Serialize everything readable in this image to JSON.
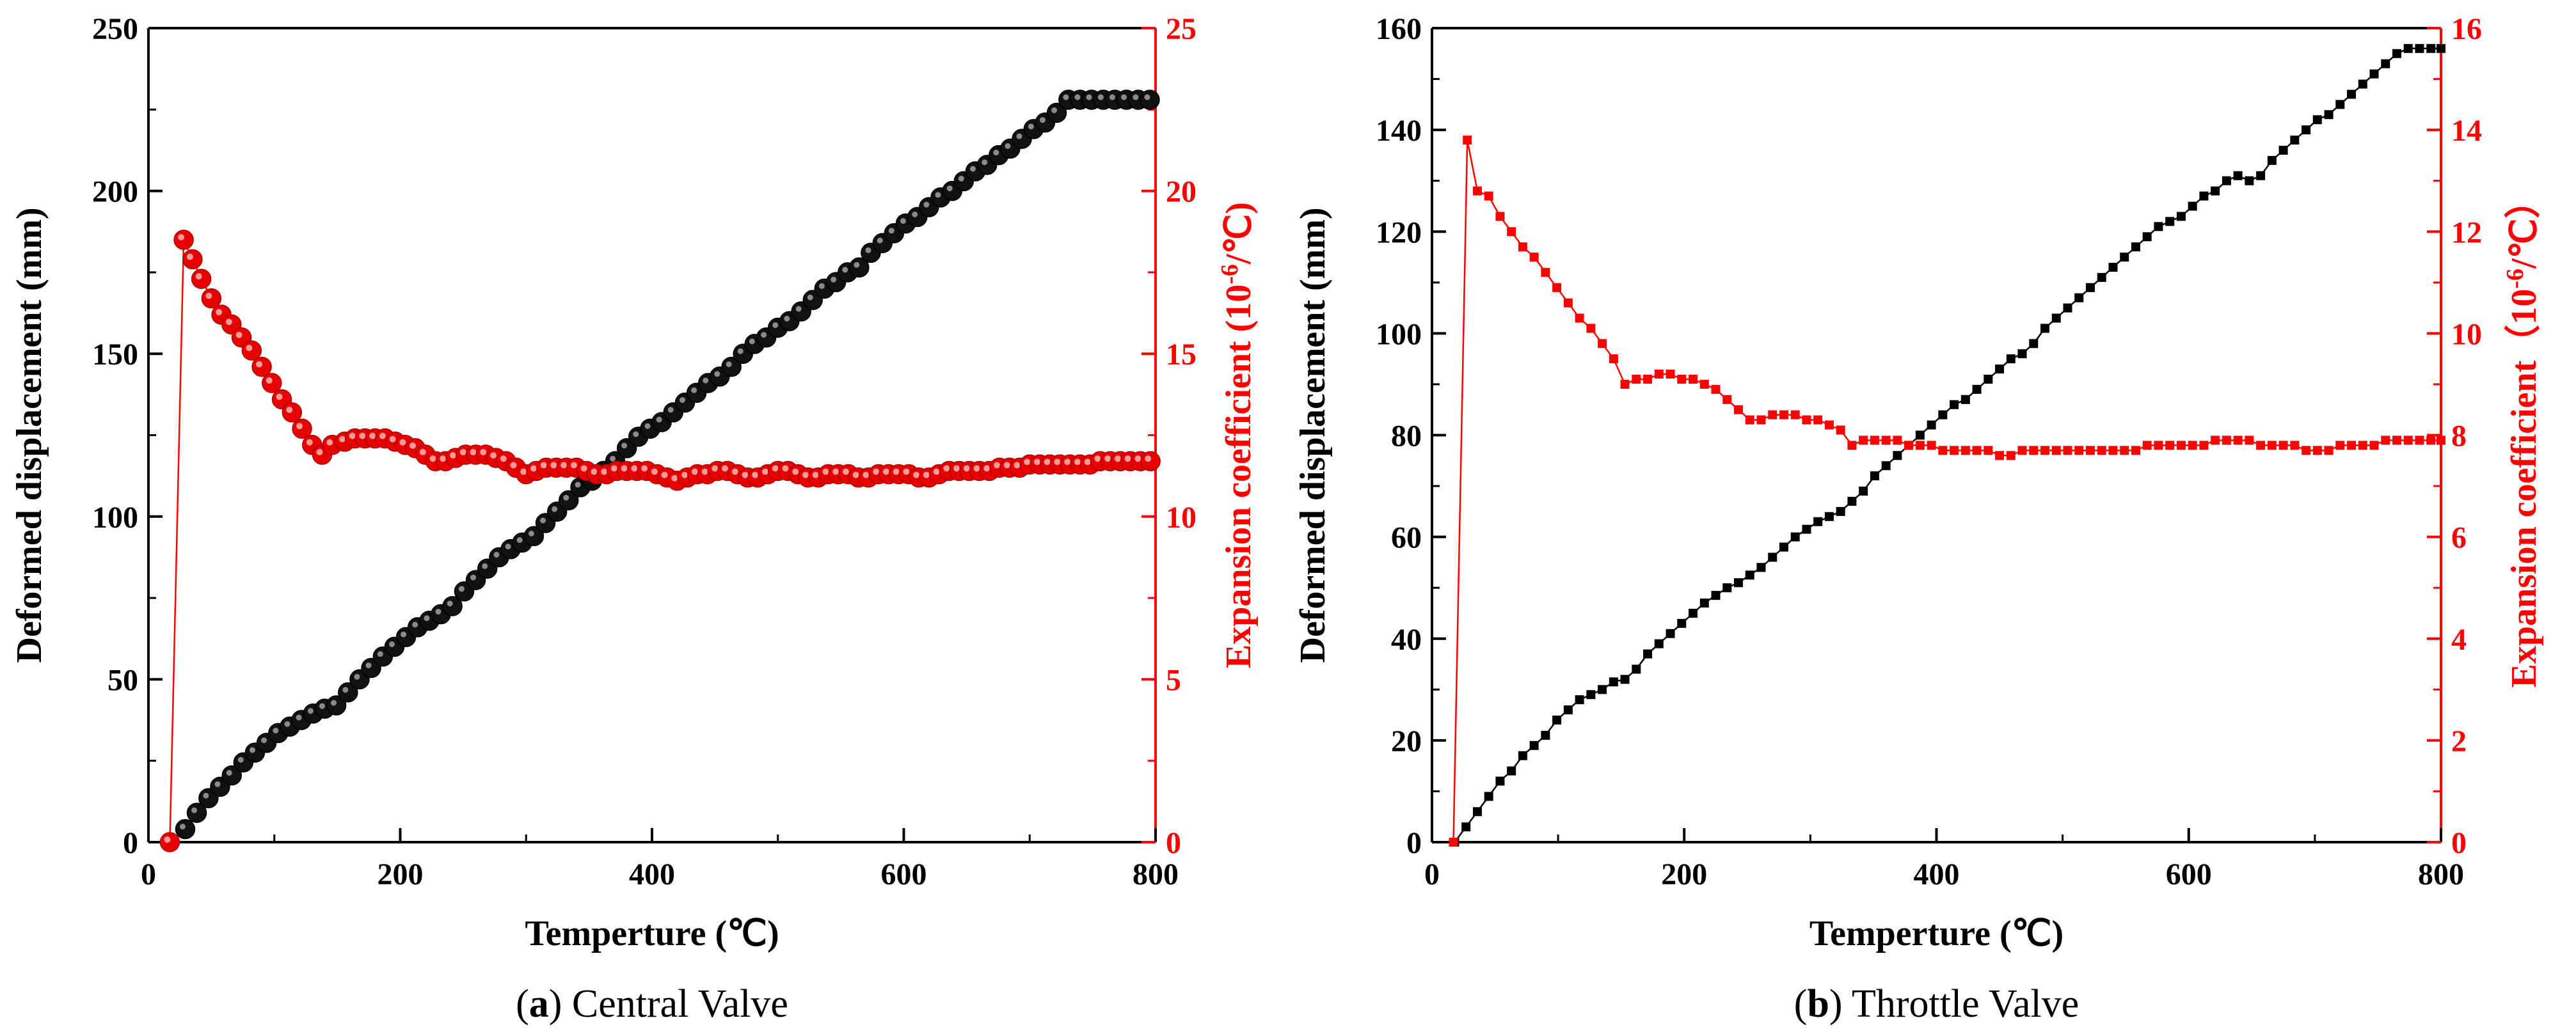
{
  "colors": {
    "primary_series": "#000000",
    "secondary_series": "#ff0000",
    "axis": "#000000"
  },
  "chart_data": [
    {
      "type": "scatter",
      "panel_label": "a",
      "caption": "Central Valve",
      "xlabel": "Temperture (℃)",
      "ylabel_left": "Deformed displacement (mm)",
      "ylabel_right_main": "Expansion coefficient (10",
      "ylabel_right_exp": "-6",
      "ylabel_right_unit": "/℃)",
      "xlim": [
        0,
        800
      ],
      "ylim_left": [
        0,
        250
      ],
      "ylim_right": [
        0,
        25
      ],
      "xticks": [
        "0",
        "200",
        "400",
        "600",
        "800"
      ],
      "yticks_left": [
        "0",
        "50",
        "100",
        "150",
        "200",
        "250"
      ],
      "yticks_right": [
        "0",
        "5",
        "10",
        "15",
        "20",
        "25"
      ],
      "marker": "circle",
      "series": [
        {
          "name": "Deformed displacement",
          "axis": "left",
          "color": "#000000",
          "x": [
            29.2,
            38.4,
            47.7,
            56.9,
            66.2,
            75.4,
            84.6,
            93.8,
            103.1,
            112.3,
            121.5,
            130.8,
            140,
            149.2,
            158.5,
            167.7,
            176.9,
            186.2,
            195.4,
            204.6,
            213.8,
            223.1,
            232.3,
            241.5,
            250.8,
            260,
            269.2,
            278.5,
            287.7,
            296.9,
            306.2,
            315.4,
            324.6,
            333.8,
            343.1,
            352.3,
            361.5,
            370.8,
            380,
            389.2,
            398.5,
            407.7,
            416.9,
            426.2,
            435.4,
            444.6,
            453.8,
            463.1,
            472.3,
            481.5,
            490.8,
            500,
            509.2,
            518.5,
            527.7,
            536.9,
            546.2,
            555.4,
            564.6,
            573.8,
            583.1,
            592.3,
            601.5,
            610.8,
            620,
            629.2,
            638.5,
            647.7,
            656.9,
            666.2,
            675.4,
            684.6,
            693.8,
            703.1,
            712.3,
            721.5,
            730.8,
            740,
            749.2,
            758.5,
            767.7,
            776.9,
            786.2,
            795.4
          ],
          "y": [
            4,
            9,
            13.5,
            17,
            20.5,
            24.5,
            27.5,
            30.5,
            33.5,
            35.5,
            37.5,
            39.5,
            41,
            42,
            46,
            50,
            53.5,
            57,
            60,
            63,
            66,
            68,
            70,
            72.5,
            77,
            80.5,
            84,
            87.5,
            90,
            92,
            94,
            98,
            101.5,
            105,
            109,
            111,
            114,
            117,
            121,
            124.5,
            127,
            129,
            132,
            135,
            138,
            141,
            143,
            146,
            150,
            153,
            155,
            158,
            160,
            163,
            166.5,
            170,
            172,
            175,
            176.5,
            181,
            184,
            187,
            190,
            192,
            195,
            198,
            200,
            203,
            206,
            208,
            211,
            213,
            216,
            219,
            221,
            224,
            228,
            228,
            228,
            228,
            228,
            228,
            228,
            228
          ],
          "y_note": "left axis, mm"
        },
        {
          "name": "Expansion coefficient",
          "axis": "right",
          "color": "#ff0000",
          "x": [
            17,
            28,
            35,
            42,
            50,
            58,
            66,
            74,
            82,
            90,
            98,
            106,
            114,
            122,
            130,
            138,
            146,
            156,
            164,
            172,
            180,
            188,
            196,
            204,
            212,
            220,
            228,
            236,
            244,
            252,
            260,
            268,
            276,
            284,
            292,
            300,
            308,
            316,
            324,
            332,
            340,
            348,
            356,
            364,
            372,
            380,
            388,
            396,
            404,
            412,
            420,
            428,
            436,
            444,
            452,
            460,
            468,
            476,
            484,
            492,
            500,
            508,
            516,
            524,
            532,
            540,
            548,
            556,
            564,
            572,
            580,
            588,
            596,
            604,
            612,
            620,
            628,
            636,
            644,
            652,
            660,
            668,
            676,
            684,
            692,
            700,
            708,
            716,
            724,
            732,
            740,
            748,
            756,
            764,
            772,
            780,
            788,
            796
          ],
          "y": [
            0,
            18.5,
            17.9,
            17.3,
            16.7,
            16.2,
            15.9,
            15.5,
            15.1,
            14.6,
            14.1,
            13.6,
            13.2,
            12.7,
            12.2,
            11.9,
            12.2,
            12.3,
            12.4,
            12.4,
            12.4,
            12.4,
            12.3,
            12.2,
            12.1,
            11.9,
            11.7,
            11.7,
            11.8,
            11.9,
            11.9,
            11.9,
            11.8,
            11.7,
            11.5,
            11.3,
            11.4,
            11.5,
            11.5,
            11.5,
            11.5,
            11.4,
            11.3,
            11.3,
            11.4,
            11.4,
            11.4,
            11.4,
            11.3,
            11.2,
            11.1,
            11.2,
            11.3,
            11.3,
            11.4,
            11.4,
            11.3,
            11.2,
            11.2,
            11.3,
            11.4,
            11.4,
            11.3,
            11.2,
            11.2,
            11.3,
            11.3,
            11.3,
            11.2,
            11.2,
            11.3,
            11.3,
            11.3,
            11.3,
            11.2,
            11.2,
            11.3,
            11.4,
            11.4,
            11.4,
            11.4,
            11.4,
            11.5,
            11.5,
            11.5,
            11.6,
            11.6,
            11.6,
            11.6,
            11.6,
            11.6,
            11.6,
            11.7,
            11.7,
            11.7,
            11.7,
            11.7,
            11.7
          ],
          "y_note": "right axis, 10^-6/℃"
        }
      ]
    },
    {
      "type": "scatter",
      "panel_label": "b",
      "caption": "Throttle Valve",
      "xlabel": "Temperture (℃)",
      "ylabel_left": "Deformed displacement (mm)",
      "ylabel_right_main": "Expansion coefficient（10",
      "ylabel_right_exp": "-6",
      "ylabel_right_unit": "/℃）",
      "xlim": [
        0,
        800
      ],
      "ylim_left": [
        0,
        160
      ],
      "ylim_right": [
        0,
        16
      ],
      "xticks": [
        "0",
        "200",
        "400",
        "600",
        "800"
      ],
      "yticks_left": [
        "0",
        "20",
        "40",
        "60",
        "80",
        "100",
        "120",
        "140",
        "160"
      ],
      "yticks_right": [
        "0",
        "2",
        "4",
        "6",
        "8",
        "10",
        "12",
        "14",
        "16"
      ],
      "marker": "square",
      "series": [
        {
          "name": "Deformed displacement",
          "axis": "left",
          "color": "#000000",
          "x": [
            18,
            27,
            36,
            45,
            54,
            63,
            72,
            81,
            90,
            99,
            108,
            117,
            126,
            135,
            144,
            153,
            162,
            171,
            180,
            189,
            198,
            207,
            216,
            225,
            234,
            243,
            252,
            261,
            270,
            279,
            288,
            297,
            306,
            315,
            324,
            333,
            342,
            351,
            360,
            369,
            378,
            387,
            396,
            405,
            414,
            423,
            432,
            441,
            450,
            459,
            468,
            477,
            486,
            495,
            504,
            513,
            522,
            531,
            540,
            549,
            558,
            567,
            576,
            585,
            594,
            603,
            612,
            621,
            630,
            639,
            648,
            657,
            666,
            675,
            684,
            693,
            702,
            711,
            720,
            729,
            738,
            747,
            756,
            765,
            774,
            783,
            792,
            800
          ],
          "y": [
            0,
            3,
            6,
            9,
            12,
            14,
            17,
            19,
            21,
            24,
            26,
            28,
            29,
            30,
            31.5,
            32,
            34,
            37,
            39,
            41,
            43,
            45,
            47,
            48.5,
            50,
            51,
            52.5,
            54,
            56,
            58,
            60,
            61.5,
            63,
            64,
            65,
            67,
            69,
            72,
            74,
            76,
            78,
            80,
            82,
            84,
            86,
            87,
            89,
            91,
            93,
            95,
            96,
            98,
            101,
            103,
            105,
            107,
            109,
            111,
            113,
            115,
            117,
            119,
            121,
            122,
            123,
            125,
            127,
            128,
            130,
            131,
            130,
            131,
            134,
            136,
            138,
            140,
            142,
            143,
            145,
            147,
            149,
            151,
            153,
            155,
            156,
            156,
            156,
            156
          ],
          "y_note": "left axis, mm"
        },
        {
          "name": "Expansion coefficient",
          "axis": "right",
          "color": "#ff0000",
          "x": [
            17,
            28,
            36,
            45,
            54,
            63,
            72,
            81,
            90,
            99,
            108,
            117,
            126,
            135,
            144,
            153,
            162,
            171,
            180,
            189,
            198,
            207,
            216,
            225,
            234,
            243,
            252,
            261,
            270,
            279,
            288,
            297,
            306,
            315,
            324,
            333,
            342,
            351,
            360,
            369,
            378,
            387,
            396,
            405,
            414,
            423,
            432,
            441,
            450,
            459,
            468,
            477,
            486,
            495,
            504,
            513,
            522,
            531,
            540,
            549,
            558,
            567,
            576,
            585,
            594,
            603,
            612,
            621,
            630,
            639,
            648,
            657,
            666,
            675,
            684,
            693,
            702,
            711,
            720,
            729,
            738,
            747,
            756,
            765,
            774,
            783,
            792,
            800
          ],
          "y": [
            0,
            13.8,
            12.8,
            12.7,
            12.3,
            12,
            11.7,
            11.5,
            11.2,
            10.9,
            10.6,
            10.3,
            10.1,
            9.8,
            9.5,
            9,
            9.1,
            9.1,
            9.2,
            9.2,
            9.1,
            9.1,
            9,
            8.9,
            8.7,
            8.5,
            8.3,
            8.3,
            8.4,
            8.4,
            8.4,
            8.3,
            8.3,
            8.2,
            8.1,
            7.8,
            7.9,
            7.9,
            7.9,
            7.9,
            7.8,
            7.8,
            7.8,
            7.7,
            7.7,
            7.7,
            7.7,
            7.7,
            7.6,
            7.6,
            7.7,
            7.7,
            7.7,
            7.7,
            7.7,
            7.7,
            7.7,
            7.7,
            7.7,
            7.7,
            7.7,
            7.8,
            7.8,
            7.8,
            7.8,
            7.8,
            7.8,
            7.9,
            7.9,
            7.9,
            7.9,
            7.8,
            7.8,
            7.8,
            7.8,
            7.7,
            7.7,
            7.7,
            7.8,
            7.8,
            7.8,
            7.8,
            7.9,
            7.9,
            7.9,
            7.9,
            7.9,
            7.9
          ],
          "y_note": "right axis, 10^-6/℃"
        }
      ]
    }
  ]
}
